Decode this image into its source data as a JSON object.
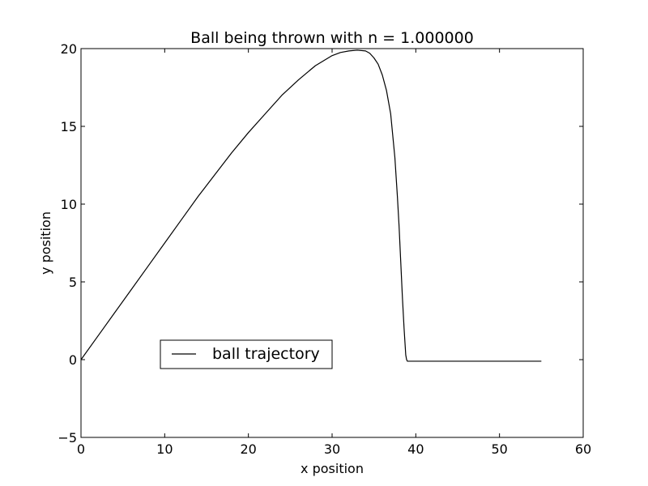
{
  "chart_data": {
    "type": "line",
    "title": "Ball being thrown with n = 1.000000",
    "xlabel": "x position",
    "ylabel": "y position",
    "xlim": [
      0,
      60
    ],
    "ylim": [
      -5,
      20
    ],
    "xticks": [
      0,
      10,
      20,
      30,
      40,
      50,
      60
    ],
    "yticks": [
      -5,
      0,
      5,
      10,
      15,
      20
    ],
    "grid": false,
    "legend_position": "lower-left",
    "series": [
      {
        "name": "ball trajectory",
        "color": "#000000",
        "x": [
          0,
          2,
          4,
          6,
          8,
          10,
          12,
          14,
          16,
          18,
          20,
          22,
          24,
          26,
          28,
          30,
          31,
          32,
          33,
          34,
          34.5,
          35,
          35.5,
          36,
          36.5,
          37,
          37.5,
          37.8,
          38,
          38.2,
          38.4,
          38.6,
          38.8,
          38.9,
          39,
          40,
          45,
          50,
          55
        ],
        "y": [
          0,
          1.5,
          3.0,
          4.5,
          6.0,
          7.5,
          9.0,
          10.5,
          11.9,
          13.3,
          14.6,
          15.8,
          17.0,
          18.0,
          18.9,
          19.55,
          19.75,
          19.85,
          19.9,
          19.85,
          19.7,
          19.4,
          19.0,
          18.3,
          17.3,
          15.8,
          13.0,
          10.5,
          8.6,
          6.3,
          4.0,
          2.0,
          0.3,
          0.0,
          -0.1,
          -0.1,
          -0.1,
          -0.1,
          -0.1
        ]
      }
    ]
  }
}
